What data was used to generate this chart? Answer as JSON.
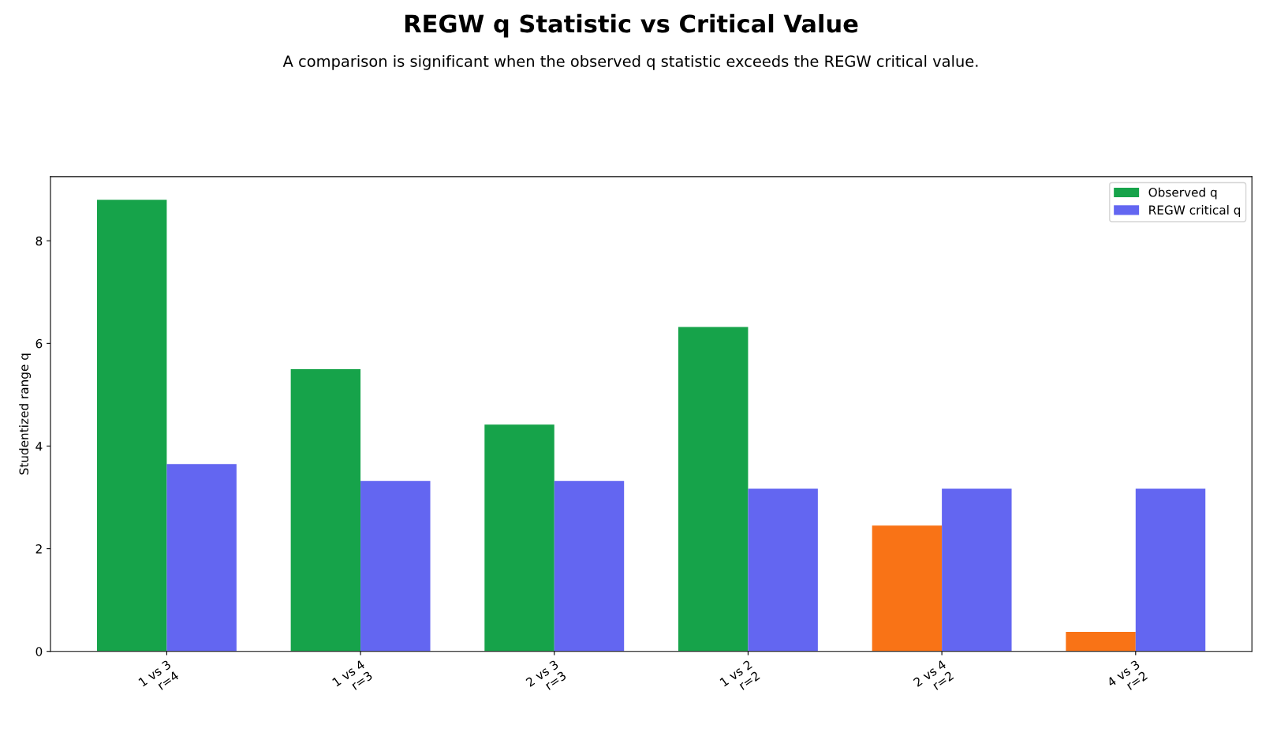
{
  "chart_data": {
    "type": "bar",
    "title": "REGW q Statistic vs Critical Value",
    "subtitle": "A comparison is significant when the observed q statistic exceeds the REGW critical value.",
    "ylabel": "Studentized range q",
    "categories": [
      "1 vs 3\nr=4",
      "1 vs 4\nr=3",
      "2 vs 3\nr=3",
      "1 vs 2\nr=2",
      "2 vs 4\nr=2",
      "4 vs 3\nr=2"
    ],
    "series": [
      {
        "name": "Observed q",
        "color": "#16a34a",
        "colors": [
          "#16a34a",
          "#16a34a",
          "#16a34a",
          "#16a34a",
          "#f97316",
          "#f97316"
        ],
        "values": [
          8.8,
          5.5,
          4.42,
          6.32,
          2.45,
          0.38
        ]
      },
      {
        "name": "REGW critical q",
        "color": "#6366f1",
        "values": [
          3.65,
          3.32,
          3.32,
          3.17,
          3.17,
          3.17
        ]
      }
    ],
    "ylim": [
      0,
      9.25
    ],
    "yticks": [
      0,
      2,
      4,
      6,
      8
    ],
    "grid": false,
    "legend": "top right"
  }
}
